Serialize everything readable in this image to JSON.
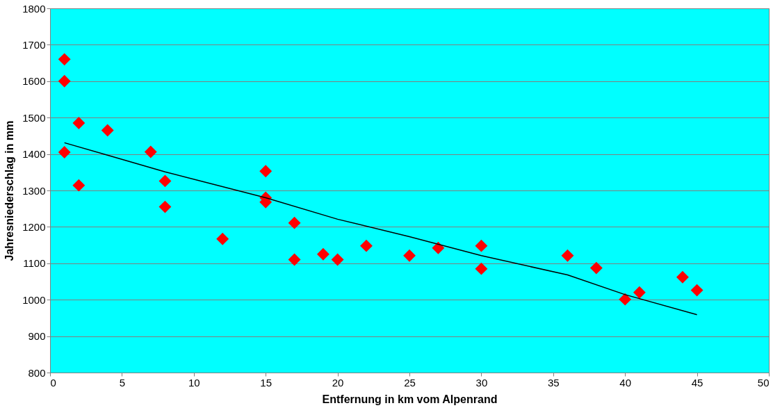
{
  "chart_data": {
    "type": "scatter",
    "xlabel": "Entfernung in km vom Alpenrand",
    "ylabel": "Jahresniederschlag in mm",
    "xlim": [
      0,
      50
    ],
    "xticks": [
      0,
      5,
      10,
      15,
      20,
      25,
      30,
      35,
      40,
      45,
      50
    ],
    "ylim": [
      800,
      1800
    ],
    "yticks": [
      800,
      900,
      1000,
      1100,
      1200,
      1300,
      1400,
      1500,
      1600,
      1700,
      1800
    ],
    "grid": "y",
    "marker": "diamond",
    "series": [
      {
        "color": "#ff0000",
        "x": [
          1,
          1,
          1,
          2,
          2,
          4,
          7,
          8,
          8,
          12,
          15,
          15,
          15,
          17,
          17,
          19,
          20,
          22,
          25,
          27,
          30,
          30,
          36,
          38,
          40,
          41,
          44,
          45
        ],
        "values": [
          1660,
          1600,
          1405,
          1485,
          1314,
          1465,
          1406,
          1326,
          1255,
          1167,
          1353,
          1280,
          1268,
          1211,
          1110,
          1125,
          1110,
          1148,
          1121,
          1142,
          1148,
          1085,
          1121,
          1087,
          1001,
          1020,
          1062,
          1026
        ]
      },
      {
        "type": "line",
        "color": "#000000",
        "line_style": "solid",
        "marker": "none",
        "x": [
          1,
          4,
          8,
          15,
          20,
          25,
          30,
          36,
          40,
          45
        ],
        "values": [
          1431,
          1397,
          1351,
          1280,
          1221,
          1173,
          1121,
          1068,
          1014,
          959
        ]
      }
    ]
  }
}
